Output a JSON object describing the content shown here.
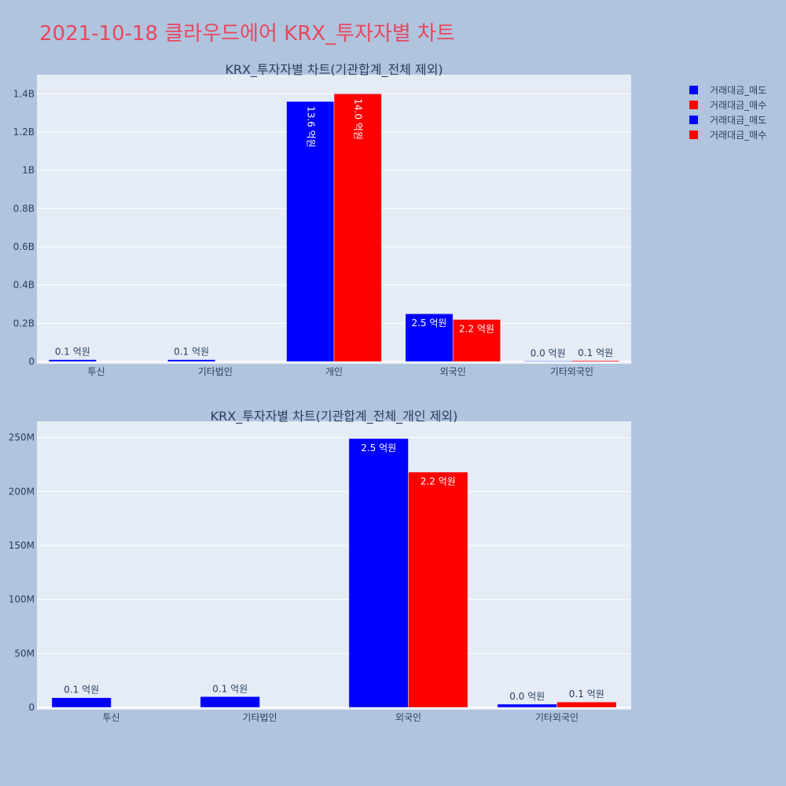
{
  "title": "2021-10-18 클라우드에어 KRX_투자자별 차트",
  "colors": {
    "sell": "#0000ff",
    "buy": "#ff0000"
  },
  "legend": [
    {
      "label": "거래대금_매도",
      "color": "#0000ff"
    },
    {
      "label": "거래대금_매수",
      "color": "#ff0000"
    },
    {
      "label": "거래대금_매도",
      "color": "#0000ff"
    },
    {
      "label": "거래대금_매수",
      "color": "#ff0000"
    }
  ],
  "chart_data": [
    {
      "type": "bar",
      "title": "KRX_투자자별 차트(기관합계_전체 제외)",
      "categories": [
        "투신",
        "기타법인",
        "개인",
        "외국인",
        "기타외국인"
      ],
      "ylim": [
        0,
        1500000000
      ],
      "yticks": [
        0,
        200000000,
        400000000,
        600000000,
        800000000,
        1000000000,
        1200000000,
        1400000000
      ],
      "ytick_labels": [
        "0",
        "0.2B",
        "0.4B",
        "0.6B",
        "0.8B",
        "1B",
        "1.2B",
        "1.4B"
      ],
      "series": [
        {
          "name": "거래대금_매도",
          "color": "#0000ff",
          "values": [
            10000000,
            10000000,
            1360000000,
            250000000,
            3000000
          ],
          "labels": [
            "0.1 억원",
            "0.1 억원",
            "13.6 억원",
            "2.5 억원",
            "0.0 억원"
          ]
        },
        {
          "name": "거래대금_매수",
          "color": "#ff0000",
          "values": [
            0,
            0,
            1400000000,
            220000000,
            5000000
          ],
          "labels": [
            "",
            "",
            "14.0 억원",
            "2.2 억원",
            "0.1 억원"
          ]
        }
      ]
    },
    {
      "type": "bar",
      "title": "KRX_투자자별 차트(기관합계_전체_개인 제외)",
      "categories": [
        "투신",
        "기타법인",
        "외국인",
        "기타외국인"
      ],
      "ylim": [
        0,
        265000000
      ],
      "yticks": [
        0,
        50000000,
        100000000,
        150000000,
        200000000,
        250000000
      ],
      "ytick_labels": [
        "0",
        "50M",
        "100M",
        "150M",
        "200M",
        "250M"
      ],
      "series": [
        {
          "name": "거래대금_매도",
          "color": "#0000ff",
          "values": [
            9000000,
            10000000,
            249000000,
            3000000
          ],
          "labels": [
            "0.1 억원",
            "0.1 억원",
            "2.5 억원",
            "0.0 억원"
          ]
        },
        {
          "name": "거래대금_매수",
          "color": "#ff0000",
          "values": [
            0,
            0,
            218000000,
            5000000
          ],
          "labels": [
            "",
            "",
            "2.2 억원",
            "0.1 억원"
          ]
        }
      ]
    }
  ]
}
